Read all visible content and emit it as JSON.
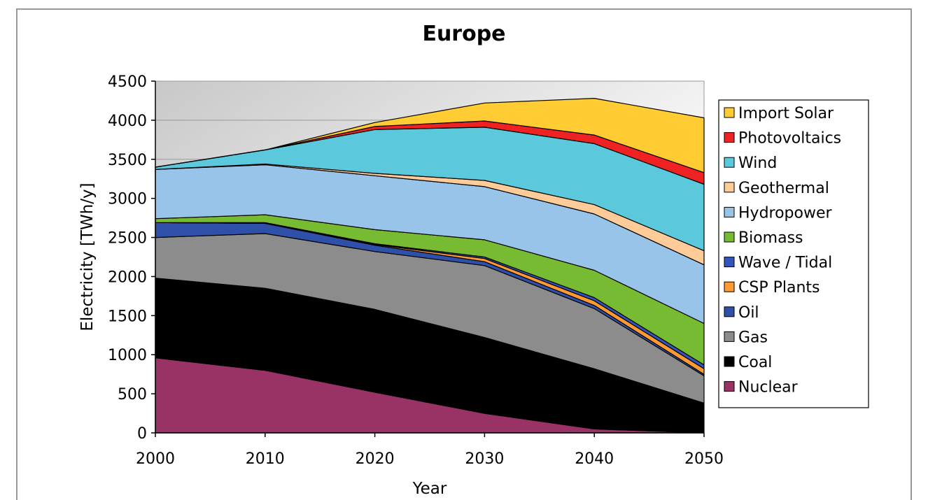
{
  "chart_data": {
    "type": "area",
    "stacked": true,
    "title": "Europe",
    "xlabel": "Year",
    "ylabel": "Electricity [TWh/y]",
    "x": [
      2000,
      2010,
      2020,
      2030,
      2040,
      2050
    ],
    "xlim": [
      2000,
      2050
    ],
    "ylim": [
      0,
      4500
    ],
    "yticks": [
      0,
      500,
      1000,
      1500,
      2000,
      2500,
      3000,
      3500,
      4000,
      4500
    ],
    "xticks": [
      2000,
      2010,
      2020,
      2030,
      2040,
      2050
    ],
    "grid": "horizontal",
    "legend_position": "right",
    "legend_order": [
      "Import Solar",
      "Photovoltaics",
      "Wind",
      "Geothermal",
      "Hydropower",
      "Biomass",
      "Wave / Tidal",
      "CSP Plants",
      "Oil",
      "Gas",
      "Coal",
      "Nuclear"
    ],
    "series": [
      {
        "name": "Nuclear",
        "color": "#993366",
        "values": [
          960,
          800,
          520,
          250,
          50,
          0
        ]
      },
      {
        "name": "Coal",
        "color": "#000000",
        "values": [
          1020,
          1050,
          1060,
          970,
          770,
          380
        ]
      },
      {
        "name": "Gas",
        "color": "#8c8c8c",
        "values": [
          520,
          700,
          740,
          920,
          770,
          350
        ]
      },
      {
        "name": "Oil",
        "color": "#2e50a8",
        "values": [
          190,
          130,
          80,
          50,
          40,
          20
        ]
      },
      {
        "name": "CSP Plants",
        "color": "#ff9933",
        "values": [
          0,
          0,
          10,
          40,
          60,
          70
        ]
      },
      {
        "name": "Wave / Tidal",
        "color": "#3355bb",
        "values": [
          0,
          10,
          10,
          20,
          40,
          50
        ]
      },
      {
        "name": "Biomass",
        "color": "#77bb33",
        "values": [
          50,
          100,
          180,
          220,
          350,
          530
        ]
      },
      {
        "name": "Hydropower",
        "color": "#99c4ea",
        "values": [
          630,
          640,
          690,
          680,
          720,
          750
        ]
      },
      {
        "name": "Geothermal",
        "color": "#ffcc99",
        "values": [
          0,
          10,
          30,
          80,
          120,
          180
        ]
      },
      {
        "name": "Wind",
        "color": "#5bc8dc",
        "values": [
          30,
          180,
          560,
          680,
          780,
          850
        ]
      },
      {
        "name": "Photovoltaics",
        "color": "#ee2222",
        "values": [
          0,
          0,
          40,
          80,
          110,
          150
        ]
      },
      {
        "name": "Import Solar",
        "color": "#ffcc33",
        "values": [
          0,
          0,
          50,
          230,
          470,
          700
        ]
      }
    ]
  }
}
